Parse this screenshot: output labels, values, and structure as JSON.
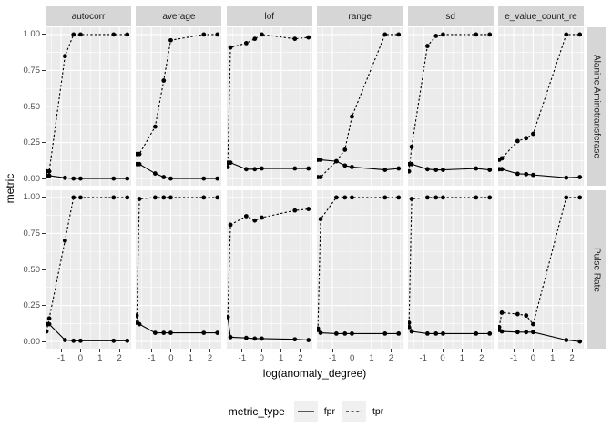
{
  "colors": {
    "panel_bg": "#ebebeb",
    "strip_bg": "#d6d6d6",
    "grid": "#ffffff",
    "series": "#000000",
    "axis_text": "#4d4d4d",
    "tick_mark": "#333333",
    "legend_key_bg": "#f0f0f0"
  },
  "y_axis": {
    "title": "metric",
    "tick_labels": [
      "1.00",
      "0.75",
      "0.50",
      "0.25",
      "0.00"
    ]
  },
  "x_axis": {
    "title": "log(anomaly_degree)",
    "tick_labels": [
      "-1",
      "0",
      "1",
      "2"
    ]
  },
  "legend": {
    "title": "metric_type",
    "entries": [
      {
        "label": "fpr",
        "line_style": "solid"
      },
      {
        "label": "tpr",
        "line_style": "dashed"
      }
    ]
  },
  "chart_data": {
    "type": "line",
    "facet_columns": [
      "autocorr",
      "average",
      "lof",
      "range",
      "sd",
      "e_value_count_re"
    ],
    "facet_rows": [
      "Alanine Aminotransferase",
      "Pulse Rate"
    ],
    "xlabel": "log(anomaly_degree)",
    "ylabel": "metric",
    "xlim": [
      -1.8,
      2.6
    ],
    "ylim": [
      -0.05,
      1.05
    ],
    "x_major_ticks": [
      -1,
      0,
      1,
      2
    ],
    "x_minor_ticks": [
      -1.5,
      -0.5,
      0.5,
      1.5,
      2.5
    ],
    "y_major_ticks": [
      0,
      0.25,
      0.5,
      0.75,
      1.0
    ],
    "y_minor_ticks": [
      0.125,
      0.375,
      0.625,
      0.875
    ],
    "grid": true,
    "legend_position": "bottom",
    "x": [
      -1.75,
      -1.61,
      -0.8,
      -0.36,
      0,
      1.7,
      2.4
    ],
    "series_styles": {
      "fpr": "solid",
      "tpr": "dashed"
    },
    "panels": [
      {
        "row": "Alanine Aminotransferase",
        "col": "autocorr",
        "fpr": [
          0.02,
          0.02,
          0.005,
          0.0,
          0.0,
          0.0,
          0.0
        ],
        "tpr": [
          0.05,
          0.05,
          0.85,
          1.0,
          1.0,
          1.0,
          1.0
        ]
      },
      {
        "row": "Alanine Aminotransferase",
        "col": "average",
        "fpr": [
          0.1,
          0.1,
          0.035,
          0.01,
          0.0,
          0.0,
          0.0
        ],
        "tpr": [
          0.17,
          0.17,
          0.36,
          0.68,
          0.96,
          1.0,
          1.0
        ]
      },
      {
        "row": "Alanine Aminotransferase",
        "col": "lof",
        "fpr": [
          0.11,
          0.11,
          0.065,
          0.065,
          0.07,
          0.07,
          0.07
        ],
        "tpr": [
          0.08,
          0.91,
          0.94,
          0.97,
          1.0,
          0.97,
          0.98
        ]
      },
      {
        "row": "Alanine Aminotransferase",
        "col": "range",
        "fpr": [
          0.13,
          0.13,
          0.12,
          0.09,
          0.08,
          0.06,
          0.07
        ],
        "tpr": [
          0.01,
          0.01,
          0.12,
          0.2,
          0.43,
          1.0,
          1.0
        ]
      },
      {
        "row": "Alanine Aminotransferase",
        "col": "sd",
        "fpr": [
          0.1,
          0.1,
          0.065,
          0.06,
          0.06,
          0.07,
          0.06
        ],
        "tpr": [
          0.05,
          0.22,
          0.92,
          0.99,
          1.0,
          1.0,
          1.0
        ]
      },
      {
        "row": "Alanine Aminotransferase",
        "col": "e_value_count_re",
        "fpr": [
          0.065,
          0.065,
          0.033,
          0.03,
          0.025,
          0.006,
          0.01
        ],
        "tpr": [
          0.13,
          0.14,
          0.26,
          0.28,
          0.31,
          1.0,
          1.0
        ]
      },
      {
        "row": "Pulse Rate",
        "col": "autocorr",
        "fpr": [
          0.12,
          0.12,
          0.01,
          0.005,
          0.005,
          0.005,
          0.005
        ],
        "tpr": [
          0.07,
          0.16,
          0.7,
          1.0,
          1.0,
          1.0,
          1.0
        ]
      },
      {
        "row": "Pulse Rate",
        "col": "average",
        "fpr": [
          0.18,
          0.12,
          0.06,
          0.06,
          0.06,
          0.06,
          0.06
        ],
        "tpr": [
          0.13,
          0.99,
          1.0,
          1.0,
          1.0,
          1.0,
          1.0
        ]
      },
      {
        "row": "Pulse Rate",
        "col": "lof",
        "fpr": [
          0.17,
          0.03,
          0.025,
          0.02,
          0.02,
          0.015,
          0.01
        ],
        "tpr": [
          0.17,
          0.81,
          0.87,
          0.84,
          0.86,
          0.91,
          0.92
        ]
      },
      {
        "row": "Pulse Rate",
        "col": "range",
        "fpr": [
          0.09,
          0.06,
          0.055,
          0.055,
          0.055,
          0.055,
          0.055
        ],
        "tpr": [
          0.08,
          0.85,
          1.0,
          1.0,
          1.0,
          1.0,
          1.0
        ]
      },
      {
        "row": "Pulse Rate",
        "col": "sd",
        "fpr": [
          0.13,
          0.07,
          0.055,
          0.055,
          0.055,
          0.055,
          0.055
        ],
        "tpr": [
          0.1,
          0.99,
          1.0,
          1.0,
          1.0,
          1.0,
          1.0
        ]
      },
      {
        "row": "Pulse Rate",
        "col": "e_value_count_re",
        "fpr": [
          0.08,
          0.07,
          0.065,
          0.065,
          0.065,
          0.01,
          0.0
        ],
        "tpr": [
          0.1,
          0.2,
          0.19,
          0.18,
          0.12,
          1.0,
          1.0
        ]
      }
    ]
  }
}
